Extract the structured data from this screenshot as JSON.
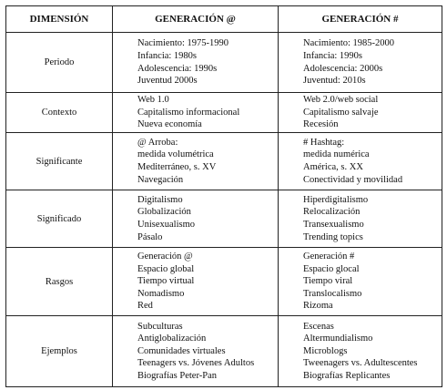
{
  "table": {
    "header": [
      "DIMENSIÓN",
      "GENERACIÓN @",
      "GENERACIÓN #"
    ],
    "rows": [
      [
        "Periodo",
        [
          "Nacimiento: 1975-1990",
          "Infancia: 1980s",
          "Adolescencia: 1990s",
          "Juventud 2000s"
        ],
        [
          "Nacimiento: 1985-2000",
          "Infancia: 1990s",
          "Adolescencia: 2000s",
          "Juventud: 2010s"
        ]
      ],
      [
        "Contexto",
        [
          "Web 1.0",
          "Capitalismo informacional",
          "Nueva economía"
        ],
        [
          "Web 2.0/web social",
          "Capitalismo salvaje",
          "Recesión"
        ]
      ],
      [
        "Significante",
        [
          "@ Arroba:",
          "medida volumétrica",
          "Mediterráneo, s. XV",
          "Navegación"
        ],
        [
          "# Hashtag:",
          "medida numérica",
          "América, s. XX",
          "Conectividad y movilidad"
        ]
      ],
      [
        "Significado",
        [
          "Digitalismo",
          "Globalización",
          "Unisexualismo",
          "Pásalo"
        ],
        [
          "Hiperdigitalismo",
          "Relocalización",
          "Transexualismo",
          "Trending topics"
        ]
      ],
      [
        "Rasgos",
        [
          "Generación @",
          "Espacio global",
          "Tiempo virtual",
          "Nomadismo",
          "Red"
        ],
        [
          "Generación #",
          "Espacio glocal",
          "Tiempo viral",
          "Translocalismo",
          "Rizoma"
        ]
      ],
      [
        "Ejemplos",
        [
          "Subculturas",
          "Antiglobalización",
          "Comunidades virtuales",
          "Teenagers vs. Jóvenes Adultos",
          "Biografías Peter-Pan"
        ],
        [
          "Escenas",
          "Altermundialismo",
          "Microblogs",
          "Tweenagers vs. Adultescentes",
          "Biografías Replicantes"
        ]
      ]
    ]
  }
}
